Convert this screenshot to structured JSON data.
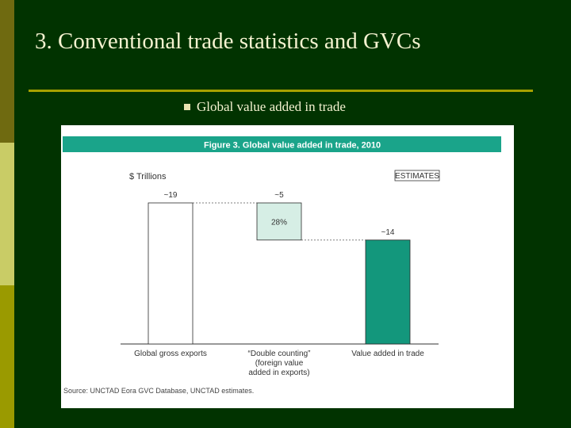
{
  "slide": {
    "title": "3. Conventional trade statistics and GVCs",
    "bullet": "Global value added in trade"
  },
  "chart_data": {
    "type": "bar",
    "figure_title": "Figure 3. Global value added in trade, 2010",
    "unit_label": "$ Trillions",
    "badge": "ESTIMATES",
    "categories": [
      [
        "Global gross exports"
      ],
      [
        "“Double counting”",
        "(foreign value",
        "added in exports)"
      ],
      [
        "Value added in trade"
      ]
    ],
    "value_labels": [
      "~19",
      "~5",
      "~14"
    ],
    "values": [
      19,
      5,
      14
    ],
    "share_label": "28%",
    "source": "Source: UNCTAD Eora GVC Database, UNCTAD estimates.",
    "colors": {
      "header_bar": "#1aa48a",
      "gross": "#ffffff",
      "double": "#d6eee5",
      "value_added": "#13977c",
      "outline": "#2a2a2a"
    }
  }
}
